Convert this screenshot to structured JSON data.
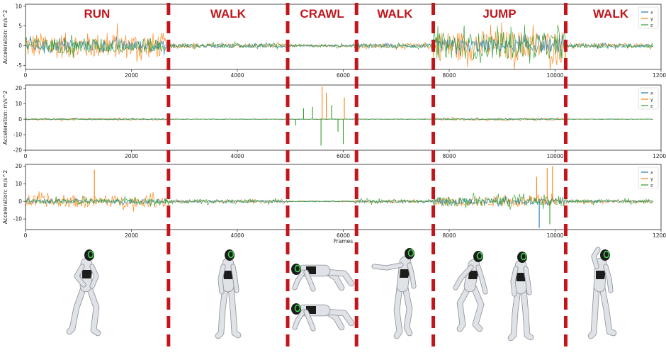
{
  "chart_data": [
    {
      "type": "line",
      "xlabel": "",
      "ylabel": "Acceleration: m/s^2",
      "xlim": [
        0,
        12000
      ],
      "ylim": [
        -6,
        10.5
      ],
      "xticks": [
        "0",
        "2000",
        "4000",
        "6000",
        "8000",
        "10000",
        "12000"
      ],
      "yticks": [
        "-5",
        "0",
        "5",
        "10"
      ],
      "ytick_values": [
        -5,
        0,
        5,
        10
      ],
      "legend": "top-right",
      "series": [
        {
          "name": "x",
          "color": "#1f77b4"
        },
        {
          "name": "y",
          "color": "#ff7f0e"
        },
        {
          "name": "z",
          "color": "#2ca02c"
        }
      ],
      "amplitude_envelope": [
        {
          "from": 0,
          "to": 2650,
          "amp": [
            2.5,
            6,
            3.5
          ]
        },
        {
          "from": 2650,
          "to": 4950,
          "amp": [
            0.8,
            1.0,
            1.0
          ]
        },
        {
          "from": 4950,
          "to": 6200,
          "amp": [
            0.3,
            0.4,
            0.7
          ]
        },
        {
          "from": 6200,
          "to": 7700,
          "amp": [
            0.8,
            1.0,
            1.0
          ]
        },
        {
          "from": 7700,
          "to": 10200,
          "amp": [
            3.0,
            7.0,
            6.0
          ]
        },
        {
          "from": 10200,
          "to": 11850,
          "amp": [
            0.8,
            1.0,
            1.0
          ]
        }
      ]
    },
    {
      "type": "line",
      "xlabel": "",
      "ylabel": "Acceleration: m/s^2",
      "xlim": [
        0,
        12000
      ],
      "ylim": [
        -20,
        22
      ],
      "xticks": [
        "0",
        "2000",
        "4000",
        "6000",
        "8000",
        "10000",
        "12000"
      ],
      "yticks": [
        "-20",
        "-10",
        "0",
        "10",
        "20"
      ],
      "ytick_values": [
        -20,
        -10,
        0,
        10,
        20
      ],
      "legend": "top-right",
      "series": [
        {
          "name": "x",
          "color": "#1f77b4"
        },
        {
          "name": "y",
          "color": "#ff7f0e"
        },
        {
          "name": "z",
          "color": "#2ca02c"
        }
      ],
      "amplitude_envelope": [
        {
          "from": 0,
          "to": 2650,
          "amp": [
            0.6,
            1.2,
            0.6
          ]
        },
        {
          "from": 2650,
          "to": 4950,
          "amp": [
            0.2,
            0.3,
            0.3
          ]
        },
        {
          "from": 4950,
          "to": 6200,
          "amp": [
            0.2,
            0.3,
            0.3
          ]
        },
        {
          "from": 6200,
          "to": 7700,
          "amp": [
            0.2,
            0.3,
            0.3
          ]
        },
        {
          "from": 7700,
          "to": 10200,
          "amp": [
            0.6,
            1.4,
            0.8
          ]
        },
        {
          "from": 10200,
          "to": 11850,
          "amp": [
            0.2,
            0.3,
            0.3
          ]
        }
      ],
      "spikes": [
        {
          "x": 5100,
          "series": "z",
          "value": -4
        },
        {
          "x": 5250,
          "series": "z",
          "value": 7
        },
        {
          "x": 5420,
          "series": "z",
          "value": 8
        },
        {
          "x": 5580,
          "series": "z",
          "value": -17
        },
        {
          "x": 5600,
          "series": "y",
          "value": 21
        },
        {
          "x": 5680,
          "series": "y",
          "value": 17
        },
        {
          "x": 5780,
          "series": "z",
          "value": 9
        },
        {
          "x": 5900,
          "series": "z",
          "value": -8
        },
        {
          "x": 6000,
          "series": "z",
          "value": -16
        },
        {
          "x": 6020,
          "series": "y",
          "value": 14
        }
      ]
    },
    {
      "type": "line",
      "xlabel": "Frames",
      "ylabel": "Acceleration: m/s^2",
      "xlim": [
        0,
        12000
      ],
      "ylim": [
        -16,
        21
      ],
      "xticks": [
        "0",
        "2000",
        "4000",
        "6000",
        "8000",
        "10000",
        "12000"
      ],
      "yticks": [
        "-10",
        "0",
        "10",
        "20"
      ],
      "ytick_values": [
        -10,
        0,
        10,
        20
      ],
      "legend": "top-right",
      "series": [
        {
          "name": "x",
          "color": "#1f77b4"
        },
        {
          "name": "y",
          "color": "#ff7f0e"
        },
        {
          "name": "z",
          "color": "#2ca02c"
        }
      ],
      "amplitude_envelope": [
        {
          "from": 0,
          "to": 2650,
          "amp": [
            2.0,
            6.0,
            3.0
          ]
        },
        {
          "from": 2650,
          "to": 4950,
          "amp": [
            1.0,
            1.5,
            2.0
          ]
        },
        {
          "from": 4950,
          "to": 6200,
          "amp": [
            0.3,
            0.5,
            0.6
          ]
        },
        {
          "from": 6200,
          "to": 7700,
          "amp": [
            1.0,
            1.5,
            2.0
          ]
        },
        {
          "from": 7700,
          "to": 10200,
          "amp": [
            3.0,
            5.0,
            5.0
          ]
        },
        {
          "from": 10200,
          "to": 11850,
          "amp": [
            1.0,
            1.5,
            2.0
          ]
        }
      ],
      "spikes": [
        {
          "x": 1300,
          "series": "y",
          "value": 18
        },
        {
          "x": 9650,
          "series": "y",
          "value": 14
        },
        {
          "x": 9850,
          "series": "y",
          "value": 19
        },
        {
          "x": 9950,
          "series": "y",
          "value": 20
        },
        {
          "x": 9700,
          "series": "x",
          "value": -15
        },
        {
          "x": 9900,
          "series": "z",
          "value": -13
        }
      ]
    }
  ],
  "activities": [
    {
      "label": "RUN",
      "from": 0,
      "to": 2700
    },
    {
      "label": "WALK",
      "from": 2700,
      "to": 4950
    },
    {
      "label": "CRAWL",
      "from": 4950,
      "to": 6250
    },
    {
      "label": "WALK",
      "from": 6250,
      "to": 7700
    },
    {
      "label": "JUMP",
      "from": 7700,
      "to": 10200
    },
    {
      "label": "WALK",
      "from": 10200,
      "to": 11900
    }
  ],
  "dividers": [
    2700,
    4950,
    6250,
    7700,
    10200
  ],
  "colors": {
    "divider": "#c0161c",
    "robot_body": "#dfe2e6",
    "robot_dark": "#1c1c1c",
    "robot_eye": "#3bd24a"
  }
}
